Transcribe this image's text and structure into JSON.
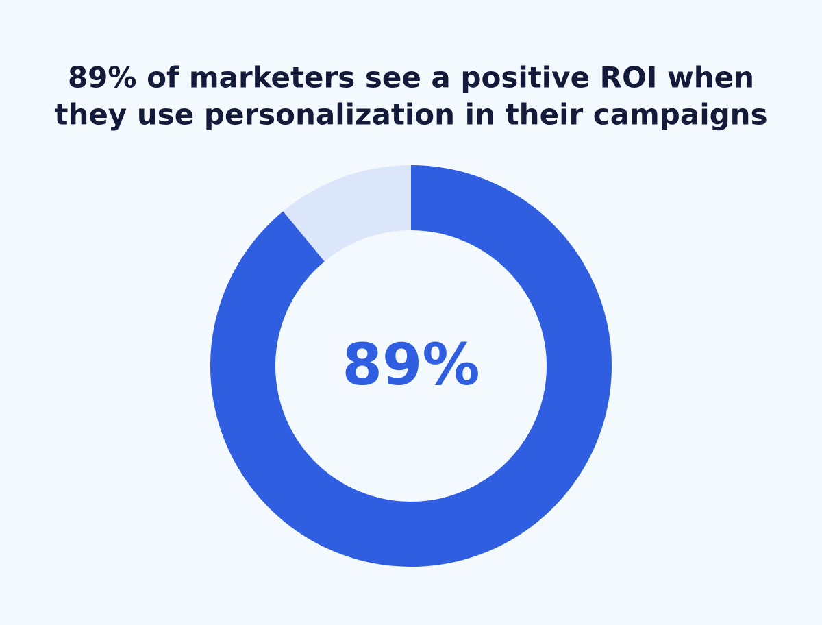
{
  "chart_data": {
    "type": "donut",
    "title": [
      "89% of marketers see a positive ROI when",
      "they use personalization in their campaigns"
    ],
    "values": [
      89,
      11
    ],
    "value_labels": [
      "89%",
      null
    ],
    "colors": [
      "#2f5fe0",
      "#dce6fb"
    ]
  }
}
